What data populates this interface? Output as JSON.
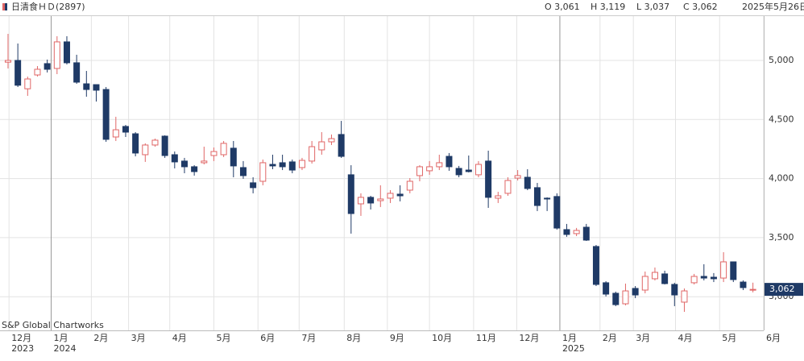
{
  "header": {
    "title": "日清食ＨＤ(2897)",
    "open": "O 3,061",
    "high": "H 3,119",
    "low": "L 3,037",
    "close": "C 3,062",
    "date": "2025年5月26日"
  },
  "chart_data": {
    "type": "candlestick",
    "source": "S&P Global Chartworks",
    "up_color": "#e06666",
    "down_color": "#1f3a66",
    "x": [
      0,
      1,
      2,
      3,
      4,
      5,
      6,
      7,
      8,
      9,
      10,
      11,
      12,
      13,
      14,
      15,
      16,
      17,
      18,
      19,
      20,
      21,
      22,
      23,
      24,
      25,
      26,
      27,
      28,
      29,
      30,
      31,
      32,
      33,
      34,
      35,
      36,
      37,
      38,
      39,
      40,
      41,
      42,
      43,
      44,
      45,
      46,
      47,
      48,
      49,
      50,
      51,
      52,
      53,
      54,
      55,
      56,
      57,
      58,
      59,
      60,
      61,
      62,
      63,
      64,
      65,
      66,
      67,
      68,
      69,
      70,
      71,
      72,
      73,
      74,
      75,
      76
    ],
    "open": [
      4985,
      5000,
      4760,
      4877,
      4973,
      4932,
      5157,
      4980,
      4802,
      4795,
      4754,
      4352,
      4441,
      4379,
      4202,
      4284,
      4359,
      4202,
      4148,
      4100,
      4134,
      4195,
      4202,
      4257,
      4093,
      3964,
      3977,
      4120,
      4134,
      4141,
      4093,
      4148,
      4243,
      4311,
      4373,
      4032,
      3786,
      3841,
      3813,
      3834,
      3868,
      3902,
      4025,
      4066,
      4100,
      4188,
      4086,
      4072,
      4032,
      4148,
      3834,
      3875,
      4004,
      4011,
      3923,
      3834,
      3848,
      3568,
      3534,
      3588,
      3425,
      3118,
      3029,
      2940,
      3070,
      3056,
      3152,
      3193,
      3104,
      2954,
      3118,
      3172,
      3165,
      3158,
      3295,
      3124,
      3061
    ],
    "high": [
      5225,
      5143,
      4863,
      4952,
      5007,
      5205,
      5205,
      5048,
      4911,
      4795,
      4775,
      4523,
      4454,
      4393,
      4298,
      4338,
      4366,
      4229,
      4175,
      4113,
      4270,
      4263,
      4318,
      4318,
      4148,
      4011,
      4161,
      4202,
      4202,
      4161,
      4175,
      4318,
      4393,
      4373,
      4488,
      4113,
      3875,
      3854,
      3943,
      3902,
      3943,
      4004,
      4113,
      4148,
      4202,
      4216,
      4107,
      4195,
      4148,
      4236,
      3888,
      4011,
      4072,
      4079,
      3963,
      3841,
      3875,
      3616,
      3582,
      3616,
      3438,
      3131,
      3043,
      3111,
      3090,
      3213,
      3247,
      3220,
      3118,
      3070,
      3193,
      3275,
      3200,
      3377,
      3295,
      3138,
      3119
    ],
    "low": [
      4932,
      4775,
      4700,
      4864,
      4898,
      4884,
      4966,
      4802,
      4693,
      4652,
      4311,
      4318,
      4352,
      4188,
      4141,
      4270,
      4175,
      4086,
      4045,
      4025,
      4120,
      4148,
      4182,
      4011,
      3998,
      3875,
      3943,
      4079,
      4072,
      4045,
      4072,
      4127,
      4202,
      4284,
      4175,
      3534,
      3684,
      3738,
      3759,
      3793,
      3807,
      3875,
      3977,
      4032,
      4072,
      4066,
      4011,
      4052,
      4011,
      3752,
      3793,
      3854,
      3984,
      3902,
      3725,
      3725,
      3568,
      3507,
      3513,
      3472,
      3090,
      3002,
      2920,
      2927,
      2988,
      3029,
      3138,
      3104,
      2920,
      2872,
      3104,
      3138,
      3124,
      3124,
      3124,
      3056,
      3037
    ],
    "close": [
      5000,
      4790,
      4843,
      4925,
      4925,
      5157,
      4980,
      4816,
      4754,
      4748,
      4332,
      4413,
      4393,
      4216,
      4284,
      4325,
      4195,
      4141,
      4100,
      4059,
      4148,
      4229,
      4298,
      4107,
      4025,
      3923,
      4134,
      4107,
      4100,
      4072,
      4154,
      4270,
      4311,
      4338,
      4188,
      3704,
      3841,
      3793,
      3827,
      3875,
      3854,
      3977,
      4100,
      4100,
      4134,
      4100,
      4032,
      4059,
      4120,
      3841,
      3854,
      3984,
      4025,
      3916,
      3772,
      3827,
      3581,
      3527,
      3561,
      3479,
      3104,
      3022,
      2933,
      3049,
      3015,
      3172,
      3206,
      3111,
      3015,
      3049,
      3172,
      3158,
      3152,
      3295,
      3145,
      3077,
      3062
    ],
    "last_label": "3,062",
    "xlim": [
      -0.82,
      77.1
    ],
    "xticks": [
      {
        "value": 0.1,
        "label": "12月"
      },
      {
        "value": 4.4,
        "label": "1月"
      },
      {
        "value": 8.5,
        "label": "2月"
      },
      {
        "value": 12.3,
        "label": "3月"
      },
      {
        "value": 16.5,
        "label": "4月"
      },
      {
        "value": 21.0,
        "label": "5月"
      },
      {
        "value": 25.5,
        "label": "6月"
      },
      {
        "value": 29.7,
        "label": "7月"
      },
      {
        "value": 34.3,
        "label": "8月"
      },
      {
        "value": 38.7,
        "label": "9月"
      },
      {
        "value": 43.0,
        "label": "10月"
      },
      {
        "value": 47.5,
        "label": "11月"
      },
      {
        "value": 51.9,
        "label": "12月"
      },
      {
        "value": 56.3,
        "label": "1月"
      },
      {
        "value": 60.4,
        "label": "2月"
      },
      {
        "value": 63.8,
        "label": "3月"
      },
      {
        "value": 68.1,
        "label": "4月"
      },
      {
        "value": 72.6,
        "label": "5月"
      },
      {
        "value": 77.1,
        "label": "6月"
      }
    ],
    "year_ticks": [
      {
        "value": 0.1,
        "label": "2023"
      },
      {
        "value": 4.4,
        "label": "2024"
      },
      {
        "value": 56.3,
        "label": "2025"
      }
    ],
    "ylim": [
      2715,
      5375
    ],
    "yticks": [
      {
        "value": 3000,
        "label": "3,000"
      },
      {
        "value": 3500,
        "label": "3,500"
      },
      {
        "value": 4000,
        "label": "4,000"
      },
      {
        "value": 4500,
        "label": "4,500"
      },
      {
        "value": 5000,
        "label": "5,000"
      }
    ],
    "grid": true
  }
}
